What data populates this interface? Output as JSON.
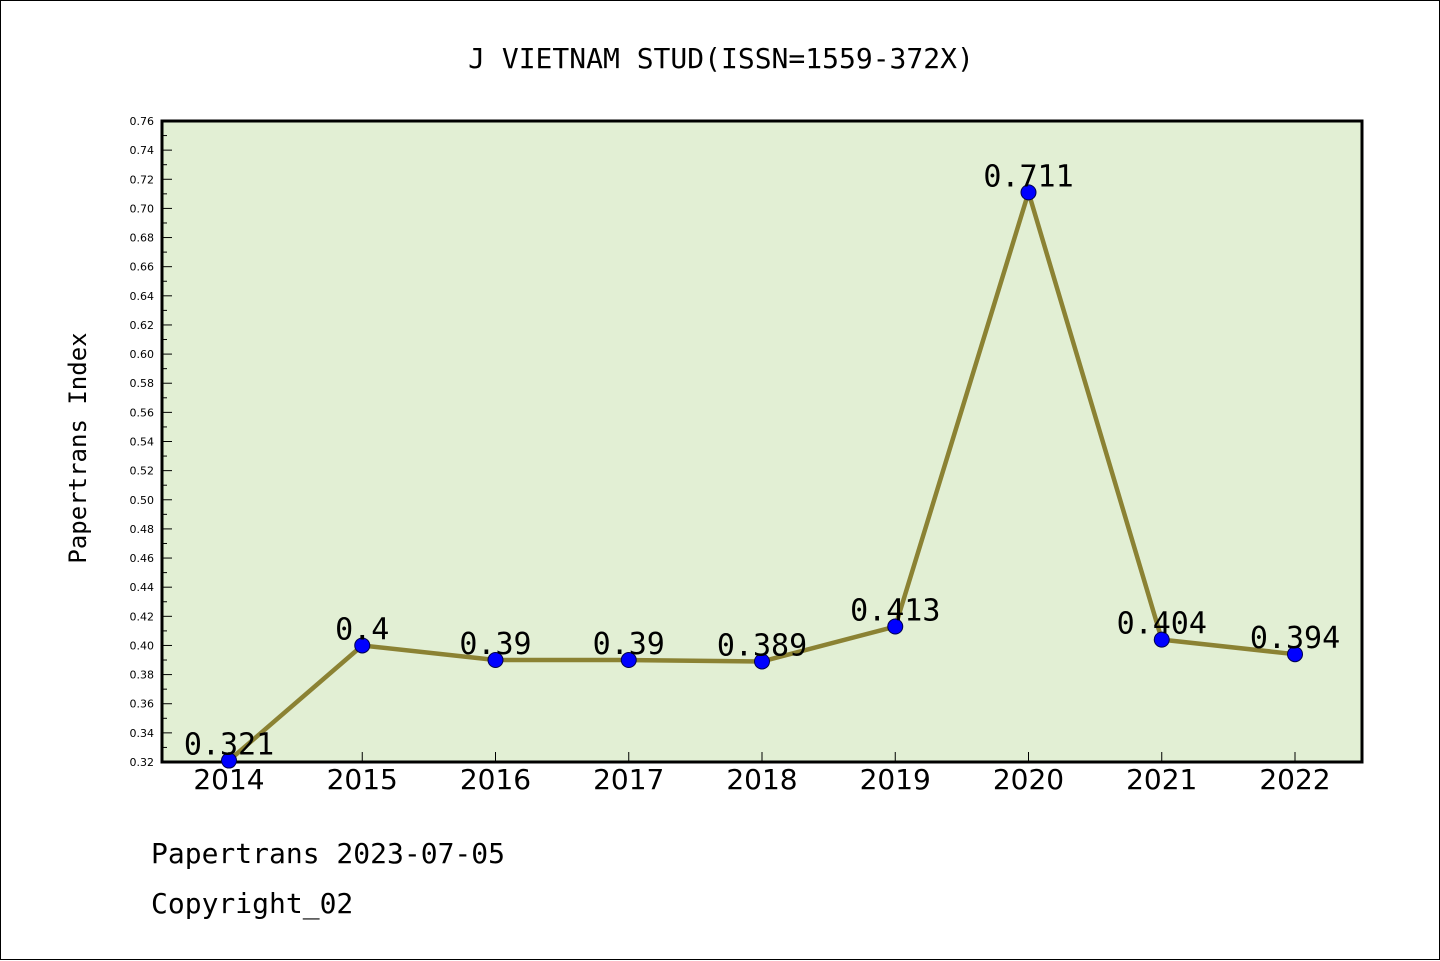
{
  "chart_data": {
    "type": "line",
    "title": "J VIETNAM STUD(ISSN=1559-372X)",
    "xlabel": "",
    "ylabel": "Papertrans Index",
    "categories": [
      "2014",
      "2015",
      "2016",
      "2017",
      "2018",
      "2019",
      "2020",
      "2021",
      "2022"
    ],
    "values": [
      0.321,
      0.4,
      0.39,
      0.39,
      0.389,
      0.413,
      0.711,
      0.404,
      0.394
    ],
    "data_labels": [
      "0.321",
      "0.4",
      "0.39",
      "0.39",
      "0.389",
      "0.413",
      "0.711",
      "0.404",
      "0.394"
    ],
    "ylim": [
      0.32,
      0.76
    ],
    "yticks": [
      "0.32",
      "0.34",
      "0.36",
      "0.38",
      "0.40",
      "0.42",
      "0.44",
      "0.46",
      "0.48",
      "0.50",
      "0.52",
      "0.54",
      "0.56",
      "0.58",
      "0.60",
      "0.62",
      "0.64",
      "0.66",
      "0.68",
      "0.70",
      "0.72",
      "0.74",
      "0.76"
    ],
    "grid": false,
    "legend": "none",
    "colors": {
      "plot_background": "#e2efd4",
      "line": "#8b8233",
      "marker": "#0000ff",
      "axis": "#000000"
    }
  },
  "footer": {
    "date_line": "Papertrans 2023-07-05",
    "copyright": "Copyright_02"
  }
}
